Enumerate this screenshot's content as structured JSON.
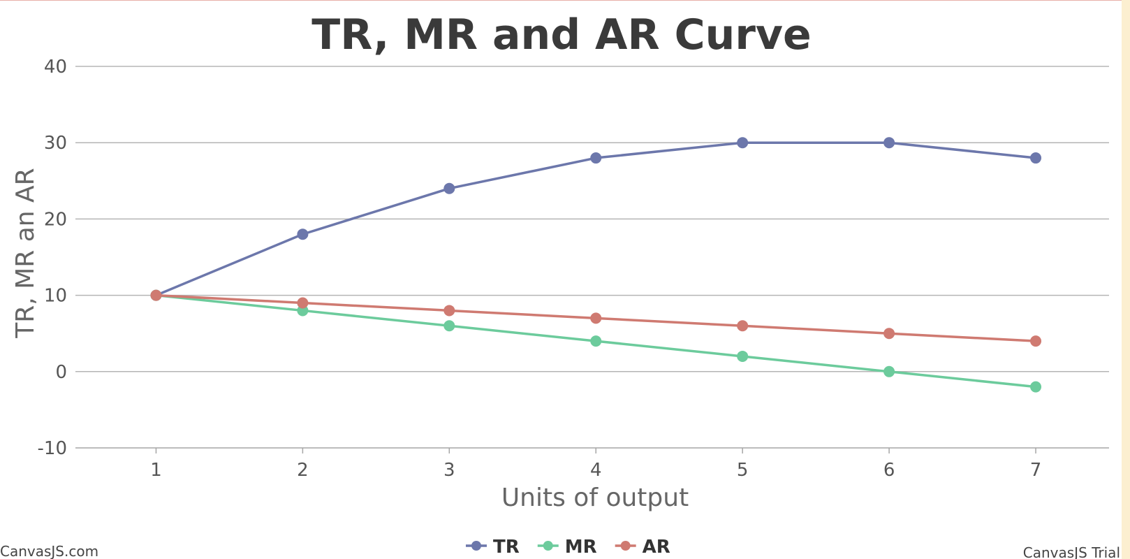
{
  "chart_data": {
    "type": "line",
    "title": "TR, MR and AR Curve",
    "xlabel": "Units of output",
    "ylabel": "TR, MR an AR",
    "x": [
      1,
      2,
      3,
      4,
      5,
      6,
      7
    ],
    "xlim": [
      0.45,
      7.5
    ],
    "ylim": [
      -10,
      40
    ],
    "yticks": [
      -10,
      0,
      10,
      20,
      30,
      40
    ],
    "grid": true,
    "legend": "bottom-center",
    "series": [
      {
        "name": "TR",
        "color": "#6c77ab",
        "values": [
          10,
          18,
          24,
          28,
          30,
          30,
          28
        ]
      },
      {
        "name": "MR",
        "color": "#6ccb9c",
        "values": [
          10,
          8,
          6,
          4,
          2,
          0,
          -2
        ]
      },
      {
        "name": "AR",
        "color": "#cf7a71",
        "values": [
          10,
          9,
          8,
          7,
          6,
          5,
          4
        ]
      }
    ]
  },
  "credits": {
    "left": "CanvasJS.com",
    "right": "CanvasJS Trial"
  }
}
